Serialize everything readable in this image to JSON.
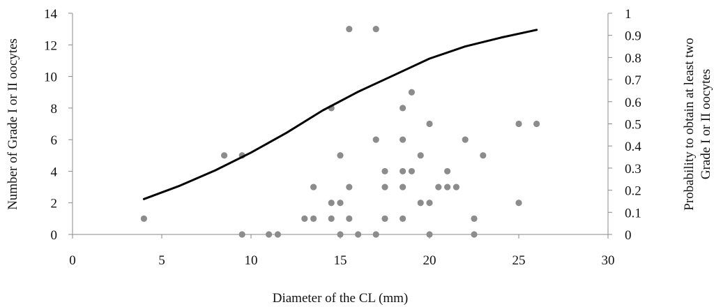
{
  "chart_data": {
    "type": "scatter",
    "title": "",
    "xlabel": "Diameter of the CL (mm)",
    "ylabel": "Number of Grade I or II oocytes",
    "y2label": [
      "Probability to obtain at least two",
      "Grade I or II oocytes"
    ],
    "xlim": [
      0,
      30
    ],
    "ylim": [
      0,
      14
    ],
    "y2lim": [
      0,
      1
    ],
    "xticks": [
      0,
      5,
      10,
      15,
      20,
      25,
      30
    ],
    "yticks": [
      0,
      2,
      4,
      6,
      8,
      10,
      12,
      14
    ],
    "y2ticks": [
      0,
      0.1,
      0.2,
      0.3,
      0.4,
      0.5,
      0.6,
      0.7,
      0.8,
      0.9,
      1
    ],
    "grid": false,
    "colors": {
      "points": "#8c8c8c",
      "curve": "#000000",
      "axes": "#8a8a8a"
    },
    "series": [
      {
        "type": "scatter",
        "axis": "left",
        "points": [
          [
            4,
            1
          ],
          [
            8.5,
            5
          ],
          [
            9.5,
            5
          ],
          [
            9.5,
            0
          ],
          [
            11,
            0
          ],
          [
            11.5,
            0
          ],
          [
            13,
            1
          ],
          [
            13.5,
            1
          ],
          [
            13.5,
            3
          ],
          [
            14.5,
            8
          ],
          [
            14.5,
            2
          ],
          [
            14.5,
            1
          ],
          [
            15,
            5
          ],
          [
            15,
            2
          ],
          [
            15,
            0
          ],
          [
            15.5,
            13
          ],
          [
            15.5,
            3
          ],
          [
            15.5,
            1
          ],
          [
            16,
            0
          ],
          [
            17,
            13
          ],
          [
            17,
            6
          ],
          [
            17,
            0
          ],
          [
            17.5,
            4
          ],
          [
            17.5,
            3
          ],
          [
            17.5,
            1
          ],
          [
            18.5,
            8
          ],
          [
            18.5,
            6
          ],
          [
            18.5,
            4
          ],
          [
            18.5,
            3
          ],
          [
            18.5,
            1
          ],
          [
            19,
            9
          ],
          [
            19,
            4
          ],
          [
            19.5,
            5
          ],
          [
            19.5,
            2
          ],
          [
            20,
            7
          ],
          [
            20,
            2
          ],
          [
            20,
            0
          ],
          [
            20.5,
            3
          ],
          [
            21,
            4
          ],
          [
            21,
            3
          ],
          [
            21.5,
            3
          ],
          [
            22,
            6
          ],
          [
            22.5,
            1
          ],
          [
            22.5,
            0
          ],
          [
            23,
            5
          ],
          [
            25,
            7
          ],
          [
            25,
            2
          ],
          [
            26,
            7
          ]
        ]
      },
      {
        "type": "line",
        "axis": "right",
        "points": [
          [
            4,
            0.16
          ],
          [
            6,
            0.22
          ],
          [
            8,
            0.29
          ],
          [
            10,
            0.37
          ],
          [
            12,
            0.46
          ],
          [
            14,
            0.56
          ],
          [
            16,
            0.645
          ],
          [
            18,
            0.72
          ],
          [
            20,
            0.795
          ],
          [
            22,
            0.85
          ],
          [
            24,
            0.89
          ],
          [
            26,
            0.925
          ]
        ]
      }
    ]
  }
}
